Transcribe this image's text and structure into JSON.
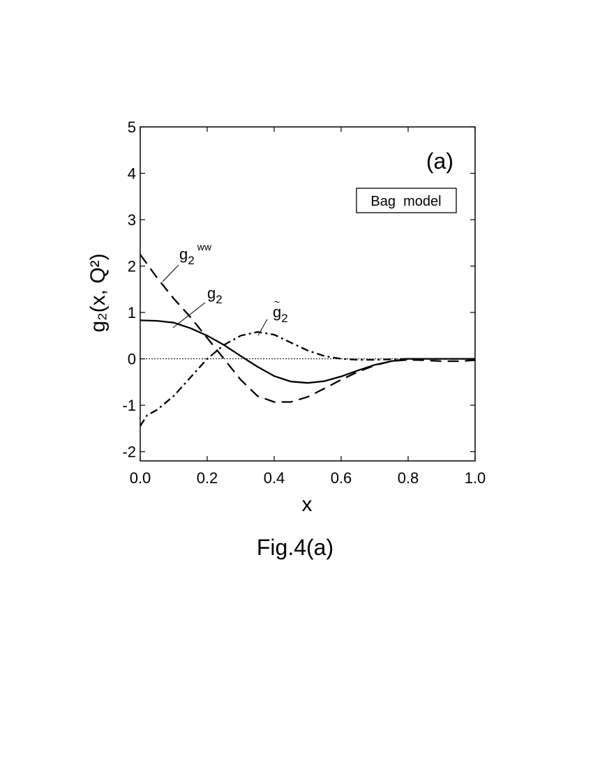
{
  "chart_data": {
    "type": "line",
    "panel_label": "(a)",
    "legend_box": "Bag  model",
    "xlabel": "x",
    "ylabel": "g₂(x, Q²)",
    "caption": "Fig.4(a)",
    "xlim": [
      0.0,
      1.0
    ],
    "ylim": [
      -2.2,
      5.0
    ],
    "xticks": [
      0.0,
      0.2,
      0.4,
      0.6,
      0.8,
      1.0
    ],
    "xtick_labels": [
      "0.0",
      "0.2",
      "0.4",
      "0.6",
      "0.8",
      "1.0"
    ],
    "yticks": [
      -2,
      -1,
      0,
      1,
      2,
      3,
      4,
      5
    ],
    "ytick_labels": [
      "-2",
      "-1",
      "0",
      "1",
      "2",
      "3",
      "4",
      "5"
    ],
    "zero_line": true,
    "grid": false,
    "series": [
      {
        "name": "g2",
        "label_main": "g",
        "label_sub": "2",
        "label_sup": "",
        "label_tilde": "",
        "style": "solid",
        "color": "#000000",
        "x": [
          0.0,
          0.05,
          0.1,
          0.15,
          0.2,
          0.25,
          0.3,
          0.35,
          0.4,
          0.45,
          0.5,
          0.55,
          0.6,
          0.65,
          0.7,
          0.75,
          0.8,
          0.85,
          0.9,
          0.95,
          1.0
        ],
        "y": [
          0.83,
          0.82,
          0.78,
          0.66,
          0.5,
          0.3,
          0.06,
          -0.17,
          -0.37,
          -0.49,
          -0.52,
          -0.48,
          -0.38,
          -0.25,
          -0.13,
          -0.05,
          0.0,
          0.0,
          0.0,
          0.0,
          0.0
        ]
      },
      {
        "name": "g2 WW",
        "label_main": "g",
        "label_sub": "2",
        "label_sup": "ww",
        "label_tilde": "",
        "style": "dashed",
        "color": "#000000",
        "x": [
          0.0,
          0.05,
          0.1,
          0.15,
          0.2,
          0.25,
          0.3,
          0.35,
          0.4,
          0.45,
          0.5,
          0.55,
          0.6,
          0.65,
          0.7,
          0.75,
          0.8,
          0.85,
          0.9,
          0.95,
          1.0
        ],
        "y": [
          2.25,
          1.75,
          1.3,
          0.9,
          0.45,
          0.0,
          -0.45,
          -0.8,
          -0.93,
          -0.93,
          -0.82,
          -0.64,
          -0.45,
          -0.28,
          -0.14,
          -0.05,
          -0.02,
          -0.03,
          -0.05,
          -0.05,
          -0.03
        ]
      },
      {
        "name": "g2 tilde",
        "label_main": "g",
        "label_sub": "2",
        "label_sup": "",
        "label_tilde": "~",
        "style": "dashdot",
        "color": "#000000",
        "x": [
          0.0,
          0.02,
          0.05,
          0.1,
          0.15,
          0.2,
          0.25,
          0.3,
          0.35,
          0.4,
          0.45,
          0.5,
          0.55,
          0.6,
          0.65,
          0.7,
          0.75,
          0.8,
          0.85,
          0.9,
          0.95,
          1.0
        ],
        "y": [
          -1.45,
          -1.22,
          -1.1,
          -0.8,
          -0.4,
          0.0,
          0.3,
          0.5,
          0.58,
          0.52,
          0.35,
          0.18,
          0.06,
          0.0,
          -0.02,
          -0.02,
          -0.01,
          0.0,
          0.0,
          0.0,
          0.0,
          0.0
        ]
      }
    ]
  }
}
